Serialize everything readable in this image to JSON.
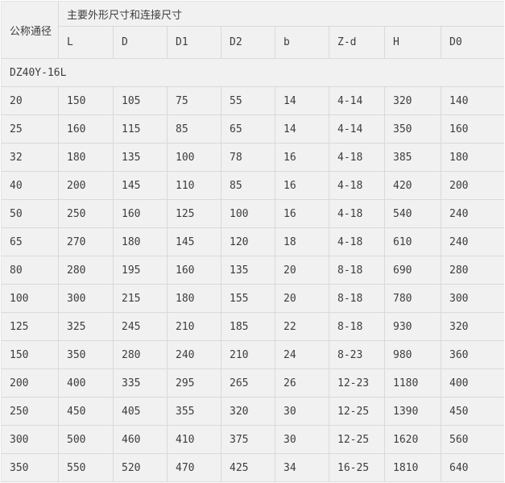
{
  "table": {
    "corner_header": "公称通径",
    "group_header": "主要外形尺寸和连接尺寸",
    "columns": [
      "L",
      "D",
      "D1",
      "D2",
      "b",
      "Z-d",
      "H",
      "D0"
    ],
    "model_label": "DZ40Y-16L",
    "rows": [
      {
        "cells": [
          "20",
          "150",
          "105",
          "75",
          "55",
          "14",
          "4-14",
          "320",
          "140"
        ]
      },
      {
        "cells": [
          "25",
          "160",
          "115",
          "85",
          "65",
          "14",
          "4-14",
          "350",
          "160"
        ]
      },
      {
        "cells": [
          "32",
          "180",
          "135",
          "100",
          "78",
          "16",
          "4-18",
          "385",
          "180"
        ]
      },
      {
        "cells": [
          "40",
          "200",
          "145",
          "110",
          "85",
          "16",
          "4-18",
          "420",
          "200"
        ]
      },
      {
        "cells": [
          "50",
          "250",
          "160",
          "125",
          "100",
          "16",
          "4-18",
          "540",
          "240"
        ]
      },
      {
        "cells": [
          "65",
          "270",
          "180",
          "145",
          "120",
          "18",
          "4-18",
          "610",
          "240"
        ]
      },
      {
        "cells": [
          "80",
          "280",
          "195",
          "160",
          "135",
          "20",
          "8-18",
          "690",
          "280"
        ]
      },
      {
        "cells": [
          "100",
          "300",
          "215",
          "180",
          "155",
          "20",
          "8-18",
          "780",
          "300"
        ]
      },
      {
        "cells": [
          "125",
          "325",
          "245",
          "210",
          "185",
          "22",
          "8-18",
          "930",
          "320"
        ]
      },
      {
        "cells": [
          "150",
          "350",
          "280",
          "240",
          "210",
          "24",
          "8-23",
          "980",
          "360"
        ]
      },
      {
        "cells": [
          "200",
          "400",
          "335",
          "295",
          "265",
          "26",
          "12-23",
          "1180",
          "400"
        ]
      },
      {
        "cells": [
          "250",
          "450",
          "405",
          "355",
          "320",
          "30",
          "12-25",
          "1390",
          "450"
        ]
      },
      {
        "cells": [
          "300",
          "500",
          "460",
          "410",
          "375",
          "30",
          "12-25",
          "1620",
          "560"
        ]
      },
      {
        "cells": [
          "350",
          "550",
          "520",
          "470",
          "425",
          "34",
          "16-25",
          "1810",
          "640"
        ]
      }
    ]
  },
  "chart_data": {
    "type": "table",
    "title": "主要外形尺寸和连接尺寸",
    "columns": [
      "公称通径",
      "L",
      "D",
      "D1",
      "D2",
      "b",
      "Z-d",
      "H",
      "D0"
    ],
    "group": "DZ40Y-16L",
    "rows": [
      [
        "20",
        "150",
        "105",
        "75",
        "55",
        "14",
        "4-14",
        "320",
        "140"
      ],
      [
        "25",
        "160",
        "115",
        "85",
        "65",
        "14",
        "4-14",
        "350",
        "160"
      ],
      [
        "32",
        "180",
        "135",
        "100",
        "78",
        "16",
        "4-18",
        "385",
        "180"
      ],
      [
        "40",
        "200",
        "145",
        "110",
        "85",
        "16",
        "4-18",
        "420",
        "200"
      ],
      [
        "50",
        "250",
        "160",
        "125",
        "100",
        "16",
        "4-18",
        "540",
        "240"
      ],
      [
        "65",
        "270",
        "180",
        "145",
        "120",
        "18",
        "4-18",
        "610",
        "240"
      ],
      [
        "80",
        "280",
        "195",
        "160",
        "135",
        "20",
        "8-18",
        "690",
        "280"
      ],
      [
        "100",
        "300",
        "215",
        "180",
        "155",
        "20",
        "8-18",
        "780",
        "300"
      ],
      [
        "125",
        "325",
        "245",
        "210",
        "185",
        "22",
        "8-18",
        "930",
        "320"
      ],
      [
        "150",
        "350",
        "280",
        "240",
        "210",
        "24",
        "8-23",
        "980",
        "360"
      ],
      [
        "200",
        "400",
        "335",
        "295",
        "265",
        "26",
        "12-23",
        "1180",
        "400"
      ],
      [
        "250",
        "450",
        "405",
        "355",
        "320",
        "30",
        "12-25",
        "1390",
        "450"
      ],
      [
        "300",
        "500",
        "460",
        "410",
        "375",
        "30",
        "12-25",
        "1620",
        "560"
      ],
      [
        "350",
        "550",
        "520",
        "470",
        "425",
        "34",
        "16-25",
        "1810",
        "640"
      ]
    ]
  },
  "colors": {
    "page_background": "#f1f1f1",
    "cell_border": "#d9d9d9",
    "outer_edge": "#fdfdfd",
    "text": "#3d3d3d"
  }
}
